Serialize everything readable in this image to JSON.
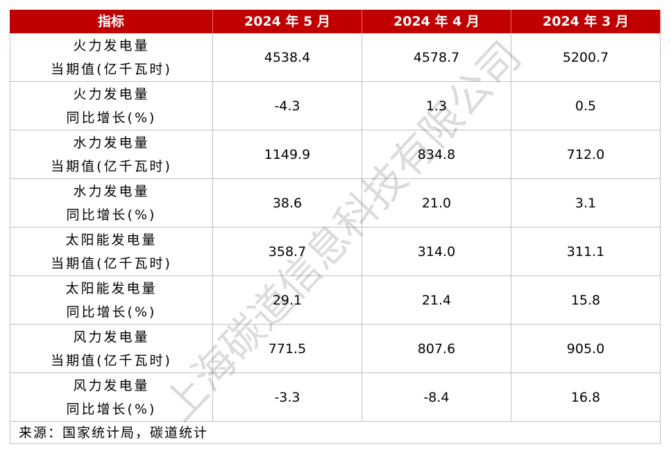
{
  "table": {
    "header": [
      "指标",
      "2024 年 5 月",
      "2024 年 4 月",
      "2024 年 3 月"
    ],
    "rows": [
      {
        "label": [
          "火力发电量",
          "当期值(亿千瓦时)"
        ],
        "values": [
          "4538.4",
          "4578.7",
          "5200.7"
        ]
      },
      {
        "label": [
          "火力发电量",
          "同比增长(%)"
        ],
        "values": [
          "-4.3",
          "1.3",
          "0.5"
        ]
      },
      {
        "label": [
          "水力发电量",
          "当期值(亿千瓦时)"
        ],
        "values": [
          "1149.9",
          "834.8",
          "712.0"
        ]
      },
      {
        "label": [
          "水力发电量",
          "同比增长(%)"
        ],
        "values": [
          "38.6",
          "21.0",
          "3.1"
        ]
      },
      {
        "label": [
          "太阳能发电量",
          "当期值(亿千瓦时)"
        ],
        "values": [
          "358.7",
          "314.0",
          "311.1"
        ]
      },
      {
        "label": [
          "太阳能发电量",
          "同比增长(%)"
        ],
        "values": [
          "29.1",
          "21.4",
          "15.8"
        ]
      },
      {
        "label": [
          "风力发电量",
          "当期值(亿千瓦时)"
        ],
        "values": [
          "771.5",
          "807.6",
          "905.0"
        ]
      },
      {
        "label": [
          "风力发电量",
          "同比增长(%)"
        ],
        "values": [
          "-3.3",
          "-8.4",
          "16.8"
        ]
      }
    ],
    "source": "来源：国家统计局，碳道统计"
  },
  "watermark": "上海碳道信息科技有限公司"
}
